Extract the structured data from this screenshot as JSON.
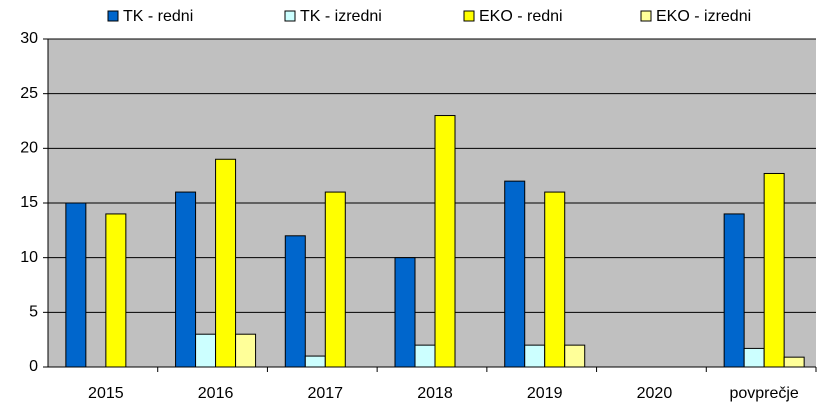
{
  "chart_data": {
    "type": "bar",
    "categories": [
      "2015",
      "2016",
      "2017",
      "2018",
      "2019",
      "2020",
      "povprečje"
    ],
    "series": [
      {
        "name": "TK - redni",
        "color": "#0066cc",
        "values": [
          15,
          16,
          12,
          10,
          17,
          null,
          14
        ]
      },
      {
        "name": "TK - izredni",
        "color": "#ccffff",
        "values": [
          null,
          3,
          1,
          2,
          2,
          null,
          1.7
        ]
      },
      {
        "name": "EKO - redni",
        "color": "#ffff00",
        "values": [
          14,
          19,
          16,
          23,
          16,
          null,
          17.7
        ]
      },
      {
        "name": "EKO - izredni",
        "color": "#ffff99",
        "values": [
          null,
          3,
          null,
          null,
          2,
          null,
          0.9
        ]
      }
    ],
    "ylim": [
      0,
      30
    ],
    "yticks": [
      0,
      5,
      10,
      15,
      20,
      25,
      30
    ],
    "grid": true,
    "legend": "top"
  }
}
